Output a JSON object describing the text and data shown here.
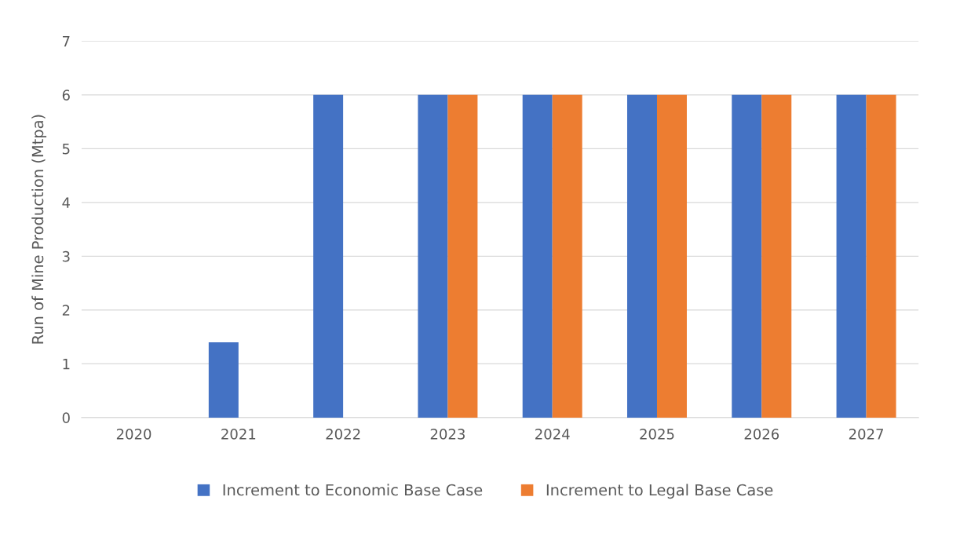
{
  "chart_data": {
    "type": "bar",
    "ylabel": "Run of Mine Production (Mtpa)",
    "categories": [
      "2020",
      "2021",
      "2022",
      "2023",
      "2024",
      "2025",
      "2026",
      "2027"
    ],
    "series": [
      {
        "name": "Increment to Economic Base Case",
        "color": "#4472c4",
        "values": [
          0,
          1.4,
          6,
          6,
          6,
          6,
          6,
          6
        ]
      },
      {
        "name": "Increment to Legal Base Case",
        "color": "#ed7d31",
        "values": [
          0,
          0,
          0,
          6,
          6,
          6,
          6,
          6
        ]
      }
    ],
    "ylim": [
      0,
      7
    ],
    "yticks": [
      0,
      1,
      2,
      3,
      4,
      5,
      6,
      7
    ],
    "grid": "y",
    "legend": "bottom"
  }
}
